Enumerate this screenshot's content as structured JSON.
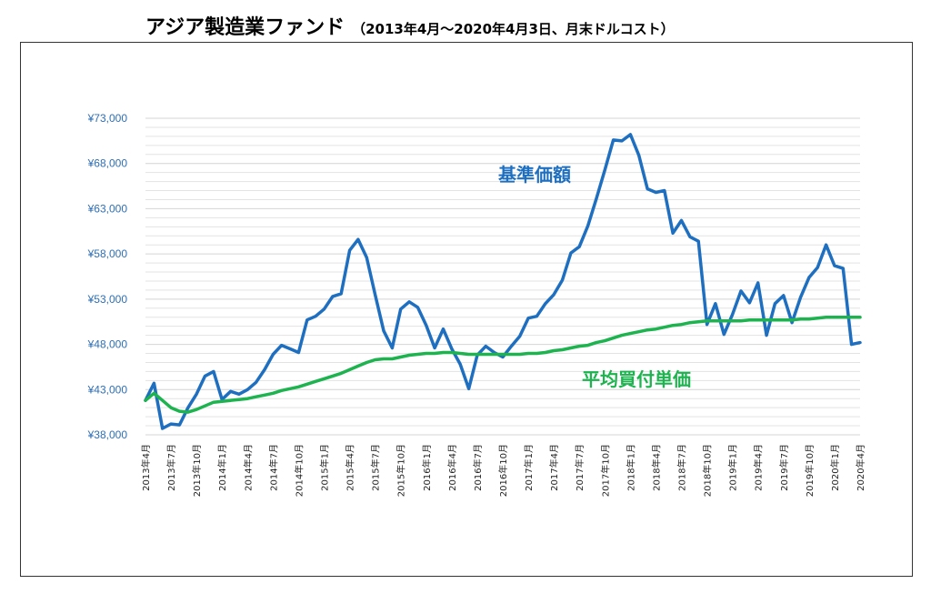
{
  "title": {
    "main": "アジア製造業ファンド",
    "sub": "（2013年4月～2020年4月3日、月末ドルコスト）"
  },
  "colors": {
    "nav": "#1f6fc0",
    "avg": "#1db34f",
    "grid": "#e3e3e3",
    "ytick": "#2e6fb5"
  },
  "chart_data": {
    "type": "line",
    "title": "アジア製造業ファンド（2013年4月～2020年4月3日、月末ドルコスト）",
    "ylim": [
      38000,
      73000
    ],
    "grid": true,
    "y_ticks": [
      "¥38,000",
      "¥43,000",
      "¥48,000",
      "¥53,000",
      "¥58,000",
      "¥63,000",
      "¥68,000",
      "¥73,000"
    ],
    "y_tick_values": [
      38000,
      43000,
      48000,
      53000,
      58000,
      63000,
      68000,
      73000
    ],
    "x_tick_labels": [
      "2013年4月",
      "2013年7月",
      "2013年10月",
      "2014年1月",
      "2014年4月",
      "2014年7月",
      "2014年10月",
      "2015年1月",
      "2015年4月",
      "2015年7月",
      "2015年10月",
      "2016年1月",
      "2016年4月",
      "2016年7月",
      "2016年10月",
      "2017年1月",
      "2017年4月",
      "2017年7月",
      "2017年10月",
      "2018年1月",
      "2018年4月",
      "2018年7月",
      "2018年10月",
      "2019年1月",
      "2019年4月",
      "2019年7月",
      "2019年10月",
      "2020年1月",
      "2020年4月"
    ],
    "series": [
      {
        "name": "基準価額",
        "values": [
          41800,
          43700,
          38700,
          39200,
          39100,
          41000,
          42500,
          44500,
          45000,
          41900,
          42800,
          42500,
          43000,
          43800,
          45200,
          46900,
          47900,
          47500,
          47100,
          50700,
          51100,
          51900,
          53300,
          53600,
          58400,
          59600,
          57600,
          53500,
          49500,
          47600,
          51900,
          52700,
          52100,
          50100,
          47600,
          49700,
          47500,
          45800,
          43100,
          46800,
          47800,
          47100,
          46600,
          47800,
          48900,
          50900,
          51100,
          52500,
          53500,
          55100,
          58100,
          58800,
          61100,
          64100,
          67300,
          70600,
          70500,
          71200,
          68900,
          65200,
          64800,
          65000,
          60300,
          61700,
          59900,
          59400,
          50200,
          52500,
          49100,
          51300,
          53900,
          52600,
          54800,
          49000,
          52500,
          53400,
          50400,
          53200,
          55400,
          56500,
          59000,
          56700,
          56400,
          48000,
          48200
        ]
      },
      {
        "name": "平均買付単価",
        "values": [
          41800,
          42600,
          41800,
          41000,
          40600,
          40500,
          40800,
          41200,
          41600,
          41700,
          41800,
          41900,
          42000,
          42200,
          42400,
          42600,
          42900,
          43100,
          43300,
          43600,
          43900,
          44200,
          44500,
          44800,
          45200,
          45600,
          46000,
          46300,
          46400,
          46400,
          46600,
          46800,
          46900,
          47000,
          47000,
          47100,
          47100,
          47000,
          46900,
          46900,
          46900,
          46900,
          46900,
          46900,
          46900,
          47000,
          47000,
          47100,
          47300,
          47400,
          47600,
          47800,
          47900,
          48200,
          48400,
          48700,
          49000,
          49200,
          49400,
          49600,
          49700,
          49900,
          50100,
          50200,
          50400,
          50500,
          50600,
          50600,
          50600,
          50600,
          50600,
          50700,
          50700,
          50700,
          50700,
          50700,
          50700,
          50800,
          50800,
          50900,
          51000,
          51000,
          51000,
          51000,
          51000
        ]
      }
    ]
  }
}
